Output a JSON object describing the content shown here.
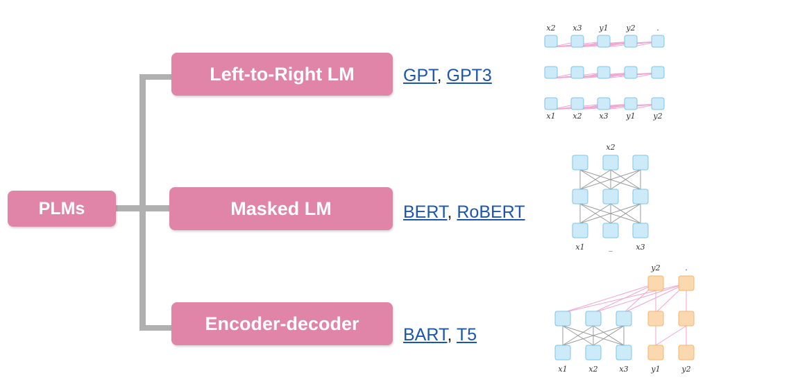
{
  "root": {
    "label": "PLMs"
  },
  "categories": [
    {
      "label": "Left-to-Right LM",
      "models": [
        "GPT",
        "GPT3"
      ]
    },
    {
      "label": "Masked LM",
      "models": [
        "BERT",
        "RoBERT"
      ]
    },
    {
      "label": "Encoder-decoder",
      "models": [
        "BART",
        "T5"
      ]
    }
  ],
  "diagrams": {
    "left_to_right": {
      "top_labels": [
        "x2",
        "x3",
        "y1",
        "y2",
        "."
      ],
      "bottom_labels": [
        "x1",
        "x2",
        "x3",
        "y1",
        "y2"
      ]
    },
    "masked": {
      "top_label": "x2",
      "bottom_labels": [
        "x1",
        "_",
        "x3"
      ]
    },
    "encoder_decoder": {
      "top_labels": [
        "y2",
        "."
      ],
      "bottom_labels": [
        "x1",
        "x2",
        "x3",
        "y1",
        "y2"
      ]
    }
  },
  "colors": {
    "box": "#e084a8",
    "connector": "#b0b0b0",
    "link": "#1a55b0",
    "node_blue": "#cdeaf8",
    "node_orange": "#fbd9b0",
    "edge_pink": "#f2a3cf",
    "edge_gray": "#9a9a9a"
  }
}
